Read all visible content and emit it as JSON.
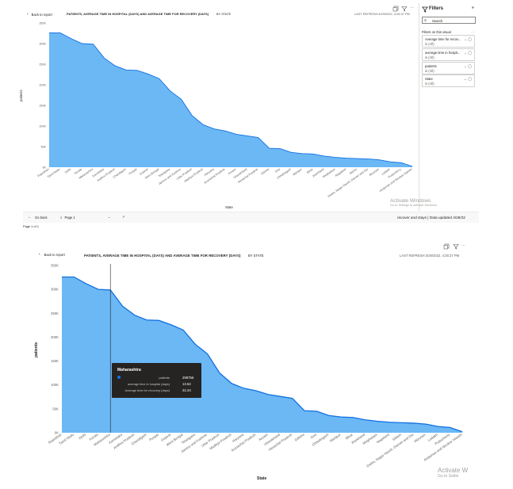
{
  "top": {
    "back_label": "Back to report",
    "title": "PATIENTS, AVERAGE TIME IN HOSPITAL (DAYS) AND AVERAGE TIME FOR RECOVERY (DAYS)",
    "by": "BY STATE",
    "last_refresh": "LAST REFRESH:4/29/2022, 4:26:37 PM",
    "y_axis_label": "patients",
    "x_axis_label": "State"
  },
  "filters": {
    "title": "Filters",
    "search_placeholder": "Search",
    "section_label": "Filters on this visual",
    "items": [
      {
        "label": "Average time for recov...",
        "value": "is (All)"
      },
      {
        "label": "average time in hospit...",
        "value": "is (All)"
      },
      {
        "label": "patients",
        "value": "is (All)"
      },
      {
        "label": "State",
        "value": "is (All)"
      }
    ]
  },
  "watermark": {
    "line1": "Activate Windows",
    "line2": "Go to Settings to activate Windows."
  },
  "bottombar": {
    "go_back": "Go back",
    "page": "Page 1",
    "status": "recover and stays  |  Data updated 4/28/22",
    "page_count": "Page 1 of 1"
  },
  "bottom": {
    "back_label": "Back to report",
    "title": "PATIENTS, AVERAGE TIME IN HOSPITAL (DAYS) AND AVERAGE TIME FOR RECOVERY (DAYS)",
    "by": "BY STATE",
    "last_refresh": "LAST REFRESH:4/29/2022, 4:26:37 PM",
    "y_axis_label": "patients",
    "x_axis_label": "State",
    "watermark_line1": "Activate W",
    "watermark_line2": "Go to Settin"
  },
  "tooltip": {
    "state": "Maharashtra",
    "rows": [
      {
        "label": "patients",
        "value": "298756"
      },
      {
        "label": "average time in hospital (days)",
        "value": "13.52"
      },
      {
        "label": "Average time for recovery (days)",
        "value": "22.24"
      }
    ]
  },
  "colors": {
    "area": "#6bb8f5",
    "line": "#1170e0",
    "tooltip_bg": "#252423"
  },
  "chart_data": [
    {
      "type": "area",
      "xlabel": "State",
      "ylabel": "patients",
      "ylim": [
        0,
        350000
      ],
      "yticks": [
        "0K",
        "50K",
        "100K",
        "150K",
        "200K",
        "250K",
        "300K",
        "350K"
      ],
      "grid": false,
      "categories": [
        "Rajasthan",
        "Tamil Nadu",
        "Delhi",
        "Kerala",
        "Maharashtra",
        "Karnataka",
        "Andhra Pradesh",
        "Chandigarh",
        "Punjab",
        "Gujarat",
        "West Bengal",
        "Telangana",
        "Jammu and Kashmir",
        "Uttar Pradesh",
        "Madhya Pradesh",
        "Haryana",
        "Arunachal Pradesh",
        "Assam",
        "Uttarakhand",
        "Himachal Pradesh",
        "Odisha",
        "Goa",
        "Chhattisgarh",
        "Manipur",
        "Bihar",
        "Jharkhand",
        "Meghalaya",
        "Nagaland",
        "Sikkim",
        "Dadra, Nagar Haveli, Daman and Diu",
        "Mizoram",
        "Ladakh",
        "Puducherry",
        "Andaman and Nicobar Islands"
      ],
      "values": [
        326000,
        326000,
        312000,
        300000,
        298756,
        265000,
        246000,
        236000,
        235000,
        226000,
        215000,
        185000,
        165000,
        125000,
        103000,
        93000,
        88000,
        80000,
        76000,
        72000,
        46000,
        45000,
        36000,
        33000,
        32000,
        27000,
        24000,
        22000,
        21000,
        20000,
        18000,
        13000,
        11000,
        2000
      ]
    },
    {
      "type": "area",
      "xlabel": "State",
      "ylabel": "patients",
      "ylim": [
        0,
        350000
      ],
      "yticks": [
        "0K",
        "50K",
        "100K",
        "150K",
        "200K",
        "250K",
        "300K",
        "350K"
      ],
      "grid": false,
      "categories": [
        "Rajasthan",
        "Tamil Nadu",
        "Delhi",
        "Kerala",
        "Maharashtra",
        "Karnataka",
        "Andhra Pradesh",
        "Chandigarh",
        "Punjab",
        "Gujarat",
        "West Bengal",
        "Telangana",
        "Jammu and Kashmir",
        "Uttar Pradesh",
        "Madhya Pradesh",
        "Haryana",
        "Arunachal Pradesh",
        "Assam",
        "Uttarakhand",
        "Himachal Pradesh",
        "Odisha",
        "Goa",
        "Chhattisgarh",
        "Manipur",
        "Bihar",
        "Jharkhand",
        "Meghalaya",
        "Nagaland",
        "Sikkim",
        "Dadra, Nagar Haveli, Daman and Diu",
        "Mizoram",
        "Ladakh",
        "Puducherry",
        "Andaman and Nicobar Islands"
      ],
      "values": [
        326000,
        326000,
        312000,
        300000,
        298756,
        265000,
        246000,
        236000,
        235000,
        226000,
        215000,
        185000,
        165000,
        125000,
        103000,
        93000,
        88000,
        80000,
        76000,
        72000,
        46000,
        45000,
        36000,
        33000,
        32000,
        27000,
        24000,
        22000,
        21000,
        20000,
        18000,
        13000,
        11000,
        2000
      ],
      "highlight_category": "Maharashtra"
    }
  ]
}
